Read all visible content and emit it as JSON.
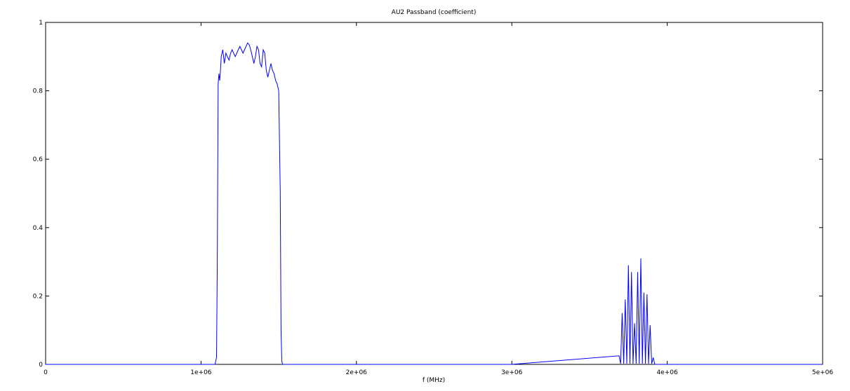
{
  "chart_data": {
    "type": "line",
    "title": "AU2 Passband (coefficient)",
    "xlabel": "f (MHz)",
    "ylabel": "",
    "xlim": [
      0,
      5000000
    ],
    "ylim": [
      0,
      1
    ],
    "x_ticks": [
      0,
      1000000,
      2000000,
      3000000,
      4000000,
      5000000
    ],
    "x_tick_labels": [
      "0",
      "1e+06",
      "2e+06",
      "3e+06",
      "4e+06",
      "5e+06"
    ],
    "y_ticks": [
      0,
      0.2,
      0.4,
      0.6,
      0.8,
      1
    ],
    "y_tick_labels": [
      "0",
      "0.2",
      "0.4",
      "0.6",
      "0.8",
      "1"
    ],
    "grid": false,
    "series": [
      {
        "color": "#0000ff",
        "x": [
          0,
          1000000,
          1090000,
          1100000,
          1105000,
          1110000,
          1115000,
          1120000,
          1125000,
          1130000,
          1135000,
          1140000,
          1150000,
          1160000,
          1170000,
          1180000,
          1190000,
          1200000,
          1210000,
          1220000,
          1230000,
          1240000,
          1250000,
          1260000,
          1270000,
          1280000,
          1290000,
          1300000,
          1310000,
          1320000,
          1330000,
          1340000,
          1350000,
          1360000,
          1370000,
          1380000,
          1390000,
          1400000,
          1410000,
          1420000,
          1430000,
          1440000,
          1450000,
          1460000,
          1470000,
          1480000,
          1490000,
          1500000,
          1510000,
          1515000,
          1520000,
          1525000,
          1530000,
          1540000,
          1550000,
          1560000,
          1600000,
          2000000,
          3000000,
          3690000,
          3700000,
          3710000,
          3720000,
          3730000,
          3740000,
          3750000,
          3760000,
          3770000,
          3780000,
          3790000,
          3800000,
          3810000,
          3820000,
          3830000,
          3840000,
          3850000,
          3860000,
          3870000,
          3880000,
          3890000,
          3900000,
          3910000,
          3920000,
          3930000,
          3940000,
          3950000,
          3960000,
          3970000,
          3980000,
          3990000,
          4000000,
          4010000,
          4020000,
          4030000,
          4040000,
          4050000,
          4060000,
          4070000,
          4080000,
          4090000,
          4100000,
          4110000,
          4120000,
          4130000,
          4140000,
          4200000,
          5000000
        ],
        "y": [
          0,
          0,
          0,
          0.02,
          0.3,
          0.82,
          0.85,
          0.83,
          0.86,
          0.9,
          0.91,
          0.92,
          0.88,
          0.91,
          0.9,
          0.89,
          0.91,
          0.92,
          0.91,
          0.9,
          0.91,
          0.92,
          0.93,
          0.92,
          0.91,
          0.92,
          0.93,
          0.94,
          0.935,
          0.92,
          0.9,
          0.88,
          0.9,
          0.93,
          0.92,
          0.88,
          0.87,
          0.92,
          0.91,
          0.86,
          0.84,
          0.86,
          0.88,
          0.86,
          0.85,
          0.83,
          0.82,
          0.8,
          0.5,
          0.1,
          0.01,
          0,
          0,
          0,
          0,
          0,
          0,
          0,
          0,
          0.025,
          0.002,
          0.15,
          0.002,
          0.19,
          0.002,
          0.29,
          0.002,
          0.27,
          0.002,
          0.12,
          0.002,
          0.27,
          0.002,
          0.31,
          0.002,
          0.21,
          0.002,
          0.205,
          0.002,
          0.115,
          0.002,
          0.02,
          0,
          0,
          0,
          0,
          0,
          0,
          0,
          0,
          0,
          0,
          0,
          0,
          0,
          0,
          0,
          0,
          0,
          0,
          0,
          0,
          0,
          0,
          0,
          0,
          0
        ]
      }
    ]
  }
}
